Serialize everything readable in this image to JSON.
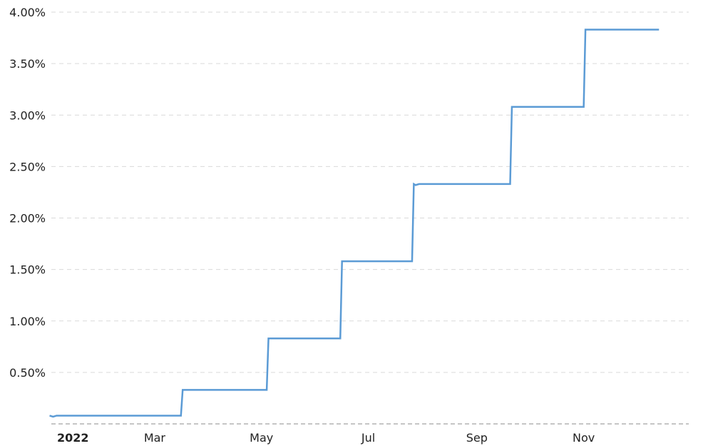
{
  "chart_data": {
    "type": "line",
    "title": "",
    "xlabel": "",
    "ylabel": "",
    "ylim": [
      0,
      4.0
    ],
    "xlim": [
      "2022-01-01",
      "2022-12-31"
    ],
    "grid": true,
    "y_ticks": [
      {
        "value": 0.5,
        "label": "0.50%"
      },
      {
        "value": 1.0,
        "label": "1.00%"
      },
      {
        "value": 1.5,
        "label": "1.50%"
      },
      {
        "value": 2.0,
        "label": "2.00%"
      },
      {
        "value": 2.5,
        "label": "2.50%"
      },
      {
        "value": 3.0,
        "label": "3.00%"
      },
      {
        "value": 3.5,
        "label": "3.50%"
      },
      {
        "value": 4.0,
        "label": "4.00%"
      }
    ],
    "x_ticks": [
      {
        "date": "2022-01-01",
        "label": "2022",
        "bold": true
      },
      {
        "date": "2022-03-01",
        "label": "Mar",
        "bold": false
      },
      {
        "date": "2022-05-01",
        "label": "May",
        "bold": false
      },
      {
        "date": "2022-07-01",
        "label": "Jul",
        "bold": false
      },
      {
        "date": "2022-09-01",
        "label": "Sep",
        "bold": false
      },
      {
        "date": "2022-11-01",
        "label": "Nov",
        "bold": false
      }
    ],
    "series": [
      {
        "color": "#5b9bd5",
        "points": [
          {
            "x": "2021-12-31",
            "y": 0.08
          },
          {
            "x": "2022-01-02",
            "y": 0.07
          },
          {
            "x": "2022-01-04",
            "y": 0.08
          },
          {
            "x": "2022-03-16",
            "y": 0.08
          },
          {
            "x": "2022-03-17",
            "y": 0.33
          },
          {
            "x": "2022-05-04",
            "y": 0.33
          },
          {
            "x": "2022-05-05",
            "y": 0.83
          },
          {
            "x": "2022-06-15",
            "y": 0.83
          },
          {
            "x": "2022-06-16",
            "y": 1.58
          },
          {
            "x": "2022-07-26",
            "y": 1.58
          },
          {
            "x": "2022-07-27",
            "y": 2.33
          },
          {
            "x": "2022-07-28",
            "y": 2.32
          },
          {
            "x": "2022-07-30",
            "y": 2.33
          },
          {
            "x": "2022-09-20",
            "y": 2.33
          },
          {
            "x": "2022-09-21",
            "y": 3.08
          },
          {
            "x": "2022-11-01",
            "y": 3.08
          },
          {
            "x": "2022-11-02",
            "y": 3.83
          },
          {
            "x": "2022-12-14",
            "y": 3.83
          }
        ]
      }
    ]
  }
}
